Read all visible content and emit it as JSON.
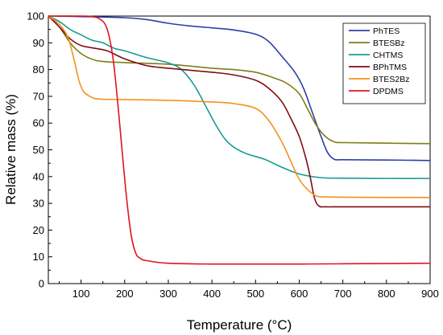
{
  "chart_data": {
    "type": "line",
    "title": "",
    "xlabel": "Temperature (°C)",
    "ylabel": "Relative mass (%)",
    "xlim": [
      25,
      900
    ],
    "ylim": [
      0,
      100
    ],
    "x_ticks": [
      100,
      200,
      300,
      400,
      500,
      600,
      700,
      800,
      900
    ],
    "y_ticks": [
      0,
      10,
      20,
      30,
      40,
      50,
      60,
      70,
      80,
      90,
      100
    ],
    "grid": false,
    "legend_position": "top-right",
    "series": [
      {
        "name": "PhTES",
        "color": "#2b3fa8",
        "points": [
          [
            25,
            100
          ],
          [
            100,
            99.8
          ],
          [
            200,
            99.4
          ],
          [
            250,
            98.7
          ],
          [
            300,
            97.3
          ],
          [
            350,
            96.3
          ],
          [
            400,
            95.6
          ],
          [
            450,
            94.8
          ],
          [
            500,
            93.2
          ],
          [
            530,
            90.5
          ],
          [
            560,
            85
          ],
          [
            590,
            79
          ],
          [
            610,
            73
          ],
          [
            630,
            64
          ],
          [
            650,
            55
          ],
          [
            665,
            49
          ],
          [
            680,
            46.5
          ],
          [
            700,
            46.3
          ],
          [
            800,
            46.2
          ],
          [
            900,
            46
          ]
        ]
      },
      {
        "name": "BTESBz",
        "color": "#7f7d16",
        "points": [
          [
            25,
            100
          ],
          [
            50,
            96
          ],
          [
            75,
            90
          ],
          [
            100,
            86
          ],
          [
            130,
            83.6
          ],
          [
            160,
            82.9
          ],
          [
            200,
            82.6
          ],
          [
            300,
            82
          ],
          [
            400,
            80.5
          ],
          [
            450,
            80
          ],
          [
            500,
            79
          ],
          [
            540,
            77
          ],
          [
            570,
            75
          ],
          [
            600,
            71
          ],
          [
            620,
            65
          ],
          [
            640,
            59
          ],
          [
            660,
            55
          ],
          [
            680,
            53
          ],
          [
            700,
            52.7
          ],
          [
            800,
            52.5
          ],
          [
            900,
            52.3
          ]
        ]
      },
      {
        "name": "CHTMS",
        "color": "#1a9a94",
        "points": [
          [
            25,
            100
          ],
          [
            50,
            98
          ],
          [
            75,
            95
          ],
          [
            100,
            93
          ],
          [
            125,
            91
          ],
          [
            150,
            90
          ],
          [
            175,
            88
          ],
          [
            200,
            87
          ],
          [
            250,
            84.5
          ],
          [
            300,
            82.5
          ],
          [
            330,
            80
          ],
          [
            360,
            74
          ],
          [
            390,
            65
          ],
          [
            410,
            59
          ],
          [
            430,
            54
          ],
          [
            450,
            51
          ],
          [
            480,
            48.5
          ],
          [
            520,
            46.5
          ],
          [
            560,
            43.5
          ],
          [
            600,
            41
          ],
          [
            650,
            39.6
          ],
          [
            700,
            39.4
          ],
          [
            800,
            39.3
          ],
          [
            900,
            39.3
          ]
        ]
      },
      {
        "name": "BPhTMS",
        "color": "#800c14",
        "points": [
          [
            25,
            100
          ],
          [
            50,
            96
          ],
          [
            75,
            91.5
          ],
          [
            100,
            89
          ],
          [
            130,
            88
          ],
          [
            160,
            87
          ],
          [
            200,
            84
          ],
          [
            250,
            81.5
          ],
          [
            300,
            80.5
          ],
          [
            400,
            79
          ],
          [
            450,
            78
          ],
          [
            500,
            76
          ],
          [
            530,
            73
          ],
          [
            560,
            68
          ],
          [
            580,
            62
          ],
          [
            600,
            55
          ],
          [
            615,
            47
          ],
          [
            625,
            40
          ],
          [
            635,
            32
          ],
          [
            645,
            29
          ],
          [
            660,
            28.7
          ],
          [
            700,
            28.7
          ],
          [
            800,
            28.7
          ],
          [
            900,
            28.7
          ]
        ]
      },
      {
        "name": "BTES2Bz",
        "color": "#f5911e",
        "points": [
          [
            25,
            100
          ],
          [
            50,
            97
          ],
          [
            70,
            92
          ],
          [
            85,
            83
          ],
          [
            95,
            76
          ],
          [
            105,
            72
          ],
          [
            120,
            70
          ],
          [
            140,
            69
          ],
          [
            200,
            68.8
          ],
          [
            300,
            68.5
          ],
          [
            400,
            67.9
          ],
          [
            450,
            67.3
          ],
          [
            500,
            65.5
          ],
          [
            530,
            61
          ],
          [
            560,
            53
          ],
          [
            580,
            46
          ],
          [
            600,
            39
          ],
          [
            620,
            35
          ],
          [
            640,
            32.7
          ],
          [
            660,
            32.4
          ],
          [
            700,
            32.3
          ],
          [
            800,
            32.2
          ],
          [
            900,
            32.2
          ]
        ]
      },
      {
        "name": "DPDMS",
        "color": "#e0141e",
        "points": [
          [
            25,
            100
          ],
          [
            100,
            100
          ],
          [
            120,
            99.9
          ],
          [
            140,
            99.2
          ],
          [
            155,
            97
          ],
          [
            165,
            92
          ],
          [
            175,
            82
          ],
          [
            185,
            66
          ],
          [
            195,
            48
          ],
          [
            205,
            31
          ],
          [
            215,
            18
          ],
          [
            225,
            11.5
          ],
          [
            235,
            9.5
          ],
          [
            250,
            8.6
          ],
          [
            300,
            7.6
          ],
          [
            400,
            7.3
          ],
          [
            500,
            7.3
          ],
          [
            600,
            7.3
          ],
          [
            700,
            7.4
          ],
          [
            800,
            7.5
          ],
          [
            900,
            7.6
          ]
        ]
      }
    ]
  }
}
